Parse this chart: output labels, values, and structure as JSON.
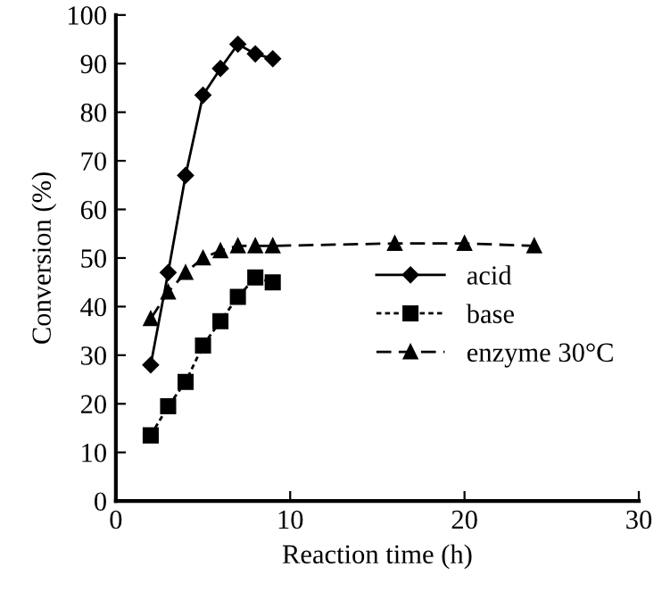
{
  "chart_data": {
    "type": "line",
    "xlabel": "Reaction time (h)",
    "ylabel": "Conversion (%)",
    "xlim": [
      0,
      30
    ],
    "xticks": [
      0,
      10,
      20,
      30
    ],
    "ylim": [
      0,
      100
    ],
    "yticks": [
      0,
      10,
      20,
      30,
      40,
      50,
      60,
      70,
      80,
      90,
      100
    ],
    "grid": false,
    "legend": "right",
    "series": [
      {
        "name": "acid",
        "color": "#000000",
        "marker": "diamond",
        "line_style": "solid",
        "x": [
          2,
          3,
          4,
          5,
          6,
          7,
          8,
          9
        ],
        "values": [
          28,
          47,
          67,
          83.5,
          89,
          94,
          92,
          91
        ]
      },
      {
        "name": "base",
        "color": "#000000",
        "marker": "square",
        "line_style": "dotted",
        "x": [
          2,
          3,
          4,
          5,
          6,
          7,
          8,
          9
        ],
        "values": [
          13.5,
          19.5,
          24.5,
          32,
          37,
          42,
          46,
          45
        ]
      },
      {
        "name": "enzyme 30°C",
        "color": "#000000",
        "marker": "triangle",
        "line_style": "dashed",
        "x": [
          2,
          3,
          4,
          5,
          6,
          7,
          8,
          9,
          16,
          20,
          24
        ],
        "values": [
          37.5,
          43,
          47,
          50,
          51.5,
          52.5,
          52.5,
          52.5,
          53,
          53,
          52.5
        ]
      }
    ]
  }
}
